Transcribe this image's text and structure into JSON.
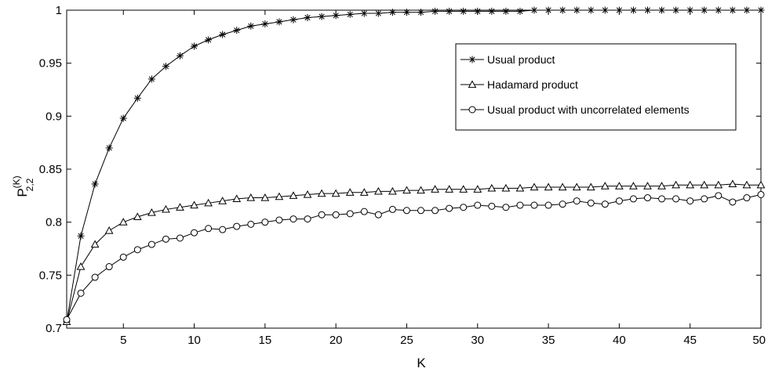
{
  "chart_data": {
    "type": "line",
    "xlabel": "K",
    "ylabel": {
      "main": "P",
      "superscript": "(K)",
      "subscript": "2,2"
    },
    "xlim": [
      1,
      50
    ],
    "ylim": [
      0.7,
      1.0
    ],
    "x_ticks": [
      5,
      10,
      15,
      20,
      25,
      30,
      35,
      40,
      45,
      50
    ],
    "y_ticks": [
      0.7,
      0.75,
      0.8,
      0.85,
      0.9,
      0.95,
      1
    ],
    "y_tick_labels": [
      "0.7",
      "0.75",
      "0.8",
      "0.85",
      "0.9",
      "0.95",
      "1"
    ],
    "grid": false,
    "legend_position": "top-right",
    "x": [
      1,
      2,
      3,
      4,
      5,
      6,
      7,
      8,
      9,
      10,
      11,
      12,
      13,
      14,
      15,
      16,
      17,
      18,
      19,
      20,
      21,
      22,
      23,
      24,
      25,
      26,
      27,
      28,
      29,
      30,
      31,
      32,
      33,
      34,
      35,
      36,
      37,
      38,
      39,
      40,
      41,
      42,
      43,
      44,
      45,
      46,
      47,
      48,
      49,
      50
    ],
    "series": [
      {
        "name": "Usual product",
        "marker": "star",
        "values": [
          0.706,
          0.787,
          0.836,
          0.87,
          0.898,
          0.917,
          0.935,
          0.947,
          0.957,
          0.966,
          0.972,
          0.977,
          0.981,
          0.985,
          0.987,
          0.989,
          0.991,
          0.993,
          0.994,
          0.995,
          0.996,
          0.997,
          0.997,
          0.998,
          0.998,
          0.998,
          0.999,
          0.999,
          0.999,
          0.999,
          0.999,
          0.999,
          0.999,
          1.0,
          1.0,
          1.0,
          1.0,
          1.0,
          1.0,
          1.0,
          1.0,
          1.0,
          1.0,
          1.0,
          1.0,
          1.0,
          1.0,
          1.0,
          1.0,
          1.0
        ]
      },
      {
        "name": "Hadamard product",
        "marker": "triangle",
        "values": [
          0.706,
          0.758,
          0.779,
          0.792,
          0.8,
          0.805,
          0.809,
          0.812,
          0.814,
          0.816,
          0.818,
          0.82,
          0.822,
          0.823,
          0.823,
          0.824,
          0.825,
          0.826,
          0.827,
          0.827,
          0.828,
          0.828,
          0.829,
          0.829,
          0.83,
          0.83,
          0.831,
          0.831,
          0.831,
          0.831,
          0.832,
          0.832,
          0.832,
          0.833,
          0.833,
          0.833,
          0.833,
          0.833,
          0.834,
          0.834,
          0.834,
          0.834,
          0.834,
          0.835,
          0.835,
          0.835,
          0.835,
          0.836,
          0.835,
          0.835
        ]
      },
      {
        "name": "Usual product with uncorrelated elements",
        "marker": "circle",
        "values": [
          0.708,
          0.733,
          0.748,
          0.758,
          0.767,
          0.774,
          0.779,
          0.784,
          0.785,
          0.79,
          0.794,
          0.793,
          0.796,
          0.798,
          0.8,
          0.802,
          0.803,
          0.803,
          0.807,
          0.807,
          0.808,
          0.81,
          0.807,
          0.812,
          0.811,
          0.811,
          0.811,
          0.813,
          0.814,
          0.816,
          0.815,
          0.814,
          0.816,
          0.816,
          0.816,
          0.817,
          0.82,
          0.818,
          0.817,
          0.82,
          0.822,
          0.823,
          0.822,
          0.822,
          0.82,
          0.822,
          0.825,
          0.819,
          0.823,
          0.826
        ]
      }
    ]
  }
}
